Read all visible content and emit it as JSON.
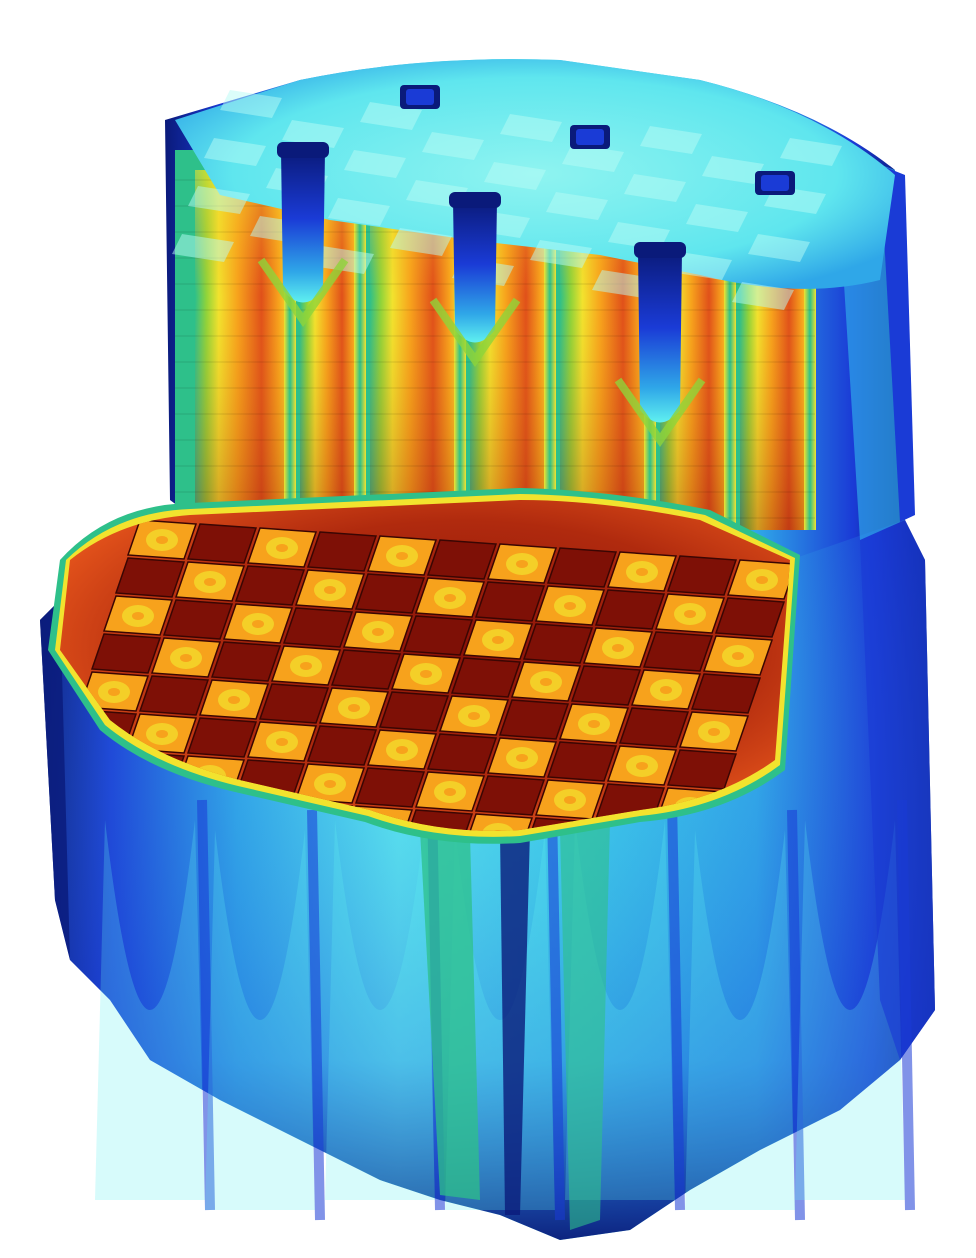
{
  "image": {
    "subject": "reactor-core-flux-cutaway-render",
    "colormap": [
      "#0a1a7a",
      "#1a3bd6",
      "#2fa7e8",
      "#5ff0f0",
      "#2ec08a",
      "#8fd43a",
      "#f2e32e",
      "#f7a21c",
      "#e0501a",
      "#8a1208"
    ],
    "background": "#ffffff",
    "upper_checker": {
      "rows": 7,
      "cols": 9
    },
    "lower_checker": {
      "rows": 8,
      "cols": 11
    },
    "upper_channels": 3,
    "top_holes": 3
  }
}
